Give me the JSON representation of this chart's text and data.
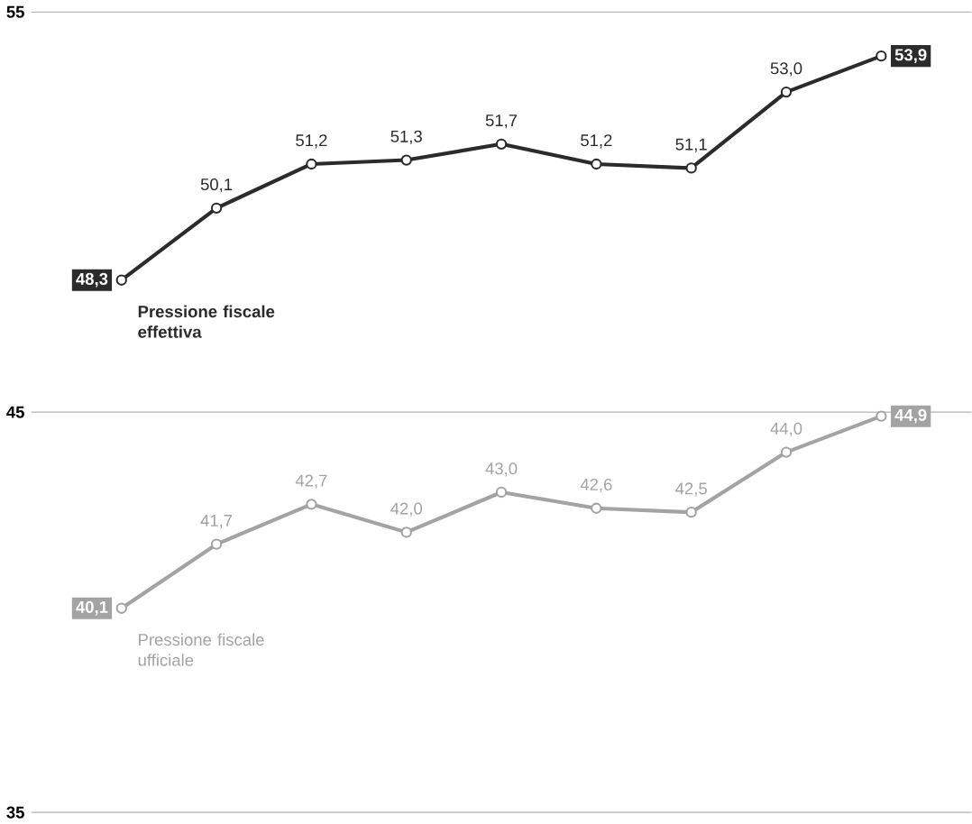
{
  "chart_data": {
    "type": "line",
    "categories": [
      null,
      null,
      null,
      null,
      null,
      null,
      null,
      null,
      null
    ],
    "series": [
      {
        "name": "Pressione fiscale effettiva",
        "color": "#2b2b2b",
        "values": [
          48.3,
          50.1,
          51.2,
          51.3,
          51.7,
          51.2,
          51.1,
          53.0,
          53.9
        ],
        "value_labels": [
          "48,3",
          "50,1",
          "51,2",
          "51,3",
          "51,7",
          "51,2",
          "51,1",
          "53,0",
          "53,9"
        ]
      },
      {
        "name": "Pressione fiscale ufficiale",
        "color": "#a3a3a3",
        "values": [
          40.1,
          41.7,
          42.7,
          42.0,
          43.0,
          42.6,
          42.5,
          44.0,
          44.9
        ],
        "value_labels": [
          "40,1",
          "41,7",
          "42,7",
          "42,0",
          "43,0",
          "42,6",
          "42,5",
          "44,0",
          "44,9"
        ]
      }
    ],
    "ylim": [
      35,
      55
    ],
    "yticks": [
      35,
      45,
      55
    ],
    "grid": "y",
    "marker": "circle",
    "line_style": "solid",
    "legend": false
  }
}
